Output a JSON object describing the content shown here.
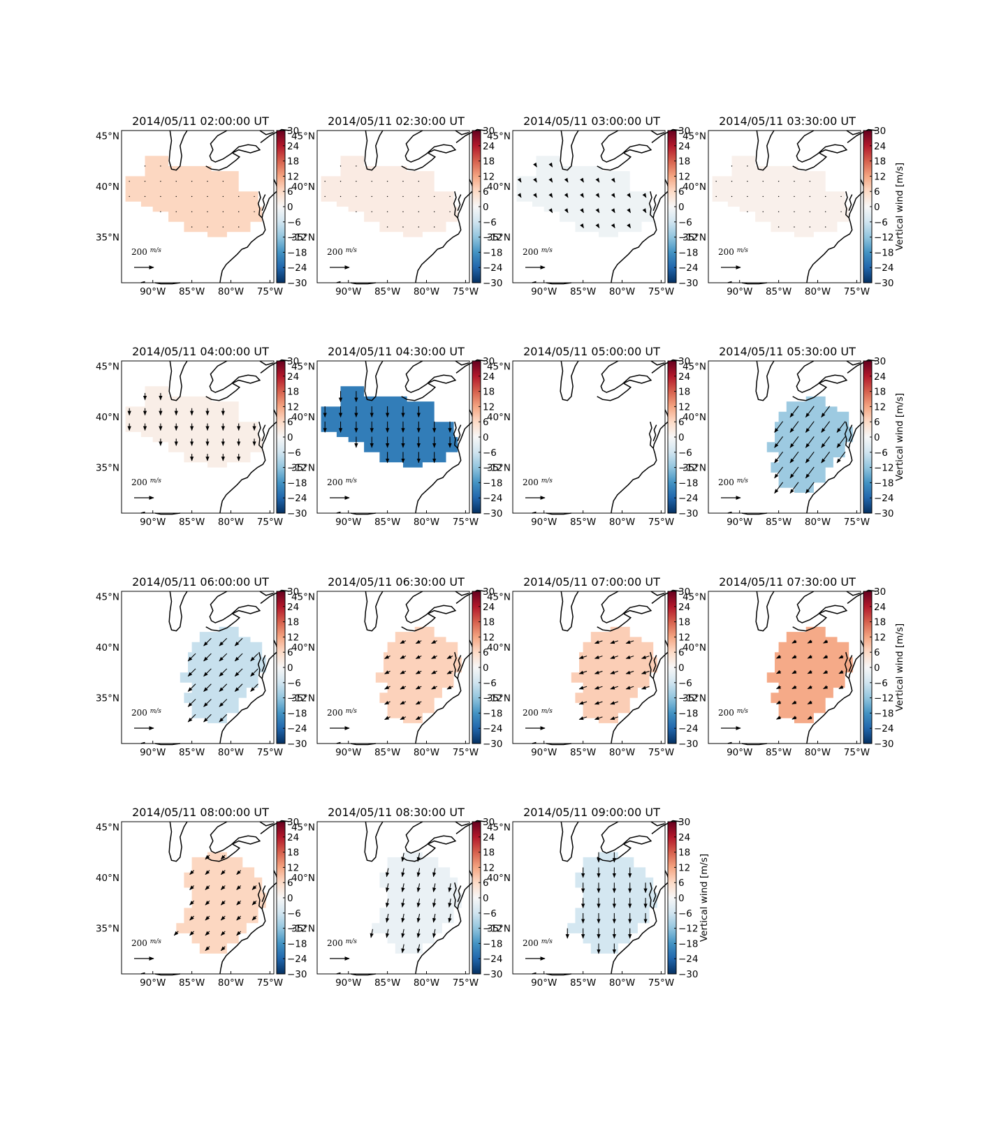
{
  "figure": {
    "colorbar_label": "Vertical wind [m/s]",
    "colorbar_ticks": [
      "30",
      "24",
      "18",
      "12",
      "6",
      "0",
      "−6",
      "−12",
      "−18",
      "−24",
      "−30"
    ],
    "colorbar_range": [
      -30,
      30
    ],
    "colorbar_colors": [
      "#053061",
      "#2166ac",
      "#4393c3",
      "#92c5de",
      "#d1e5f0",
      "#f7f7f7",
      "#fddbc7",
      "#f4a582",
      "#d6604d",
      "#b2182b",
      "#67001f"
    ],
    "lon_ticks": [
      "90°W",
      "85°W",
      "80°W",
      "75°W"
    ],
    "lat_ticks": [
      "45°N",
      "40°N",
      "35°N"
    ],
    "lon_range": [
      -94,
      -74.5
    ],
    "lat_range": [
      30.5,
      45.5
    ],
    "reference_vector": {
      "label": "200",
      "unit_num": "m",
      "unit_den": "s",
      "magnitude": 200
    },
    "icons": {
      "reference_arrow": "arrow-right-icon"
    }
  },
  "panels": [
    {
      "title": "2014/05/11 02:00:00 UT",
      "value": 6.5,
      "region": "west",
      "wind": [
        0,
        0
      ],
      "scale": 0.05
    },
    {
      "title": "2014/05/11 02:30:00 UT",
      "value": 2.5,
      "region": "west",
      "wind": [
        0,
        0
      ],
      "scale": 0.05
    },
    {
      "title": "2014/05/11 03:00:00 UT",
      "value": -1.5,
      "region": "west",
      "wind": [
        0.3,
        -0.5
      ],
      "scale": 0.25
    },
    {
      "title": "2014/05/11 03:30:00 UT",
      "value": 1.5,
      "region": "west",
      "wind": [
        0,
        0
      ],
      "scale": 0.05
    },
    {
      "title": "2014/05/11 04:00:00 UT",
      "value": 2.0,
      "region": "west",
      "wind": [
        0,
        -1
      ],
      "scale": 0.45
    },
    {
      "title": "2014/05/11 04:30:00 UT",
      "value": -21,
      "region": "west",
      "wind": [
        0,
        -1
      ],
      "scale": 0.7
    },
    {
      "title": "2014/05/11 05:00:00 UT",
      "value": null,
      "region": "none",
      "wind": [
        0,
        0
      ],
      "scale": 0
    },
    {
      "title": "2014/05/11 05:30:00 UT",
      "value": -11,
      "region": "east",
      "wind": [
        -0.6,
        -0.8
      ],
      "scale": 0.9
    },
    {
      "title": "2014/05/11 06:00:00 UT",
      "value": -7,
      "region": "east",
      "wind": [
        -0.7,
        -0.7
      ],
      "scale": 0.7
    },
    {
      "title": "2014/05/11 06:30:00 UT",
      "value": 7,
      "region": "east",
      "wind": [
        -0.8,
        -0.4
      ],
      "scale": 0.45
    },
    {
      "title": "2014/05/11 07:00:00 UT",
      "value": 7.5,
      "region": "east",
      "wind": [
        -0.9,
        -0.3
      ],
      "scale": 0.55
    },
    {
      "title": "2014/05/11 07:30:00 UT",
      "value": 11.5,
      "region": "east",
      "wind": [
        -0.8,
        -0.4
      ],
      "scale": 0.35
    },
    {
      "title": "2014/05/11 08:00:00 UT",
      "value": 6.5,
      "region": "east2",
      "wind": [
        -0.6,
        -0.6
      ],
      "scale": 0.45
    },
    {
      "title": "2014/05/11 08:30:00 UT",
      "value": -2.0,
      "region": "east2",
      "wind": [
        -0.2,
        -1
      ],
      "scale": 0.55
    },
    {
      "title": "2014/05/11 09:00:00 UT",
      "value": -5.5,
      "region": "east2",
      "wind": [
        0,
        -1
      ],
      "scale": 0.65
    }
  ]
}
